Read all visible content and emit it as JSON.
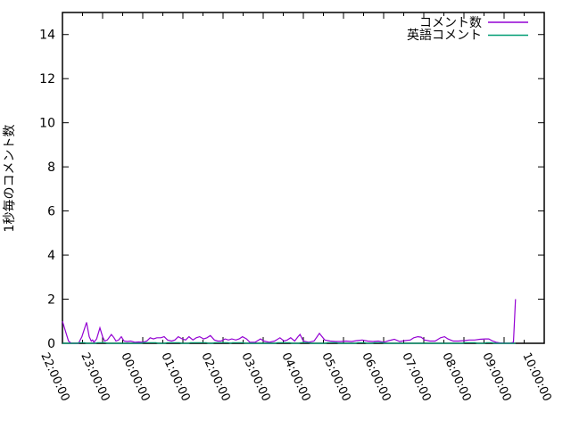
{
  "chart_data": {
    "type": "line",
    "title": "",
    "xlabel": "",
    "ylabel": "1秒毎のコメント数",
    "grid": false,
    "legend_position": "top-right-inside",
    "x_axis": {
      "unit": "time",
      "range_minutes": [
        0,
        720
      ],
      "major_tick_minutes": 60,
      "minor_tick_minutes": 30,
      "tick_labels": [
        "22:00:00",
        "23:00:00",
        "00:00:00",
        "01:00:00",
        "02:00:00",
        "03:00:00",
        "04:00:00",
        "05:00:00",
        "06:00:00",
        "07:00:00",
        "08:00:00",
        "09:00:00",
        "10:00:00"
      ],
      "label_rotation_deg": 65
    },
    "y_axis": {
      "ylim": [
        0,
        15
      ],
      "ticks": [
        0,
        2,
        4,
        6,
        8,
        10,
        12,
        14
      ]
    },
    "series": [
      {
        "name": "コメント数",
        "color": "#9400D3",
        "points": [
          [
            0,
            1.0
          ],
          [
            4,
            0.6
          ],
          [
            9,
            0.1
          ],
          [
            13,
            0
          ],
          [
            24,
            0
          ],
          [
            29,
            0.3
          ],
          [
            36,
            0.95
          ],
          [
            40,
            0.3
          ],
          [
            43,
            0.1
          ],
          [
            45,
            0.15
          ],
          [
            47,
            0.05
          ],
          [
            51,
            0.2
          ],
          [
            56,
            0.7
          ],
          [
            60,
            0.3
          ],
          [
            63,
            0.1
          ],
          [
            67,
            0.15
          ],
          [
            73,
            0.4
          ],
          [
            77,
            0.25
          ],
          [
            80,
            0.1
          ],
          [
            84,
            0.15
          ],
          [
            88,
            0.3
          ],
          [
            92,
            0.1
          ],
          [
            97,
            0.08
          ],
          [
            102,
            0.1
          ],
          [
            108,
            0.05
          ],
          [
            114,
            0.06
          ],
          [
            120,
            0.05
          ],
          [
            126,
            0.1
          ],
          [
            131,
            0.25
          ],
          [
            136,
            0.2
          ],
          [
            141,
            0.25
          ],
          [
            147,
            0.25
          ],
          [
            152,
            0.3
          ],
          [
            157,
            0.15
          ],
          [
            163,
            0.1
          ],
          [
            168,
            0.15
          ],
          [
            173,
            0.3
          ],
          [
            179,
            0.2
          ],
          [
            184,
            0.15
          ],
          [
            189,
            0.3
          ],
          [
            195,
            0.15
          ],
          [
            200,
            0.25
          ],
          [
            205,
            0.3
          ],
          [
            211,
            0.2
          ],
          [
            216,
            0.25
          ],
          [
            221,
            0.35
          ],
          [
            227,
            0.15
          ],
          [
            232,
            0.1
          ],
          [
            237,
            0.1
          ],
          [
            243,
            0.2
          ],
          [
            248,
            0.15
          ],
          [
            253,
            0.2
          ],
          [
            259,
            0.15
          ],
          [
            264,
            0.2
          ],
          [
            269,
            0.3
          ],
          [
            275,
            0.2
          ],
          [
            280,
            0.05
          ],
          [
            288,
            0.05
          ],
          [
            296,
            0.2
          ],
          [
            301,
            0.1
          ],
          [
            309,
            0.05
          ],
          [
            317,
            0.1
          ],
          [
            325,
            0.25
          ],
          [
            331,
            0.1
          ],
          [
            336,
            0.15
          ],
          [
            341,
            0.25
          ],
          [
            347,
            0.1
          ],
          [
            352,
            0.3
          ],
          [
            355,
            0.4
          ],
          [
            360,
            0.1
          ],
          [
            368,
            0.05
          ],
          [
            376,
            0.1
          ],
          [
            384,
            0.45
          ],
          [
            392,
            0.15
          ],
          [
            400,
            0.1
          ],
          [
            408,
            0.08
          ],
          [
            416,
            0.08
          ],
          [
            424,
            0.1
          ],
          [
            432,
            0.08
          ],
          [
            440,
            0.12
          ],
          [
            448,
            0.15
          ],
          [
            456,
            0.1
          ],
          [
            464,
            0.08
          ],
          [
            472,
            0.1
          ],
          [
            480,
            0.05
          ],
          [
            488,
            0.12
          ],
          [
            496,
            0.18
          ],
          [
            504,
            0.08
          ],
          [
            512,
            0.12
          ],
          [
            520,
            0.15
          ],
          [
            525,
            0.25
          ],
          [
            531,
            0.3
          ],
          [
            536,
            0.28
          ],
          [
            541,
            0.15
          ],
          [
            549,
            0.1
          ],
          [
            557,
            0.1
          ],
          [
            565,
            0.25
          ],
          [
            571,
            0.3
          ],
          [
            576,
            0.2
          ],
          [
            584,
            0.1
          ],
          [
            592,
            0.1
          ],
          [
            600,
            0.12
          ],
          [
            608,
            0.15
          ],
          [
            616,
            0.15
          ],
          [
            624,
            0.18
          ],
          [
            632,
            0.2
          ],
          [
            637,
            0.2
          ],
          [
            643,
            0.1
          ],
          [
            648,
            0.05
          ],
          [
            653,
            0.02
          ],
          [
            661,
            0
          ],
          [
            669,
            0
          ],
          [
            674,
            0.05
          ],
          [
            677,
            2.0
          ]
        ]
      },
      {
        "name": "英語コメント",
        "color": "#009E73",
        "points": [
          [
            0,
            0
          ],
          [
            22,
            0
          ],
          [
            25,
            0.03
          ],
          [
            33,
            0.03
          ],
          [
            36,
            0
          ],
          [
            49,
            0
          ],
          [
            52,
            0.03
          ],
          [
            64,
            0.03
          ],
          [
            67,
            0
          ],
          [
            118,
            0
          ],
          [
            121,
            0.03
          ],
          [
            140,
            0.03
          ],
          [
            143,
            0
          ],
          [
            153,
            0
          ],
          [
            156,
            0.03
          ],
          [
            175,
            0.03
          ],
          [
            178,
            0
          ],
          [
            188,
            0
          ],
          [
            191,
            0.03
          ],
          [
            215,
            0.03
          ],
          [
            218,
            0
          ],
          [
            224,
            0
          ],
          [
            227,
            0.03
          ],
          [
            248,
            0.03
          ],
          [
            251,
            0
          ],
          [
            254,
            0.03
          ],
          [
            270,
            0.03
          ],
          [
            273,
            0
          ],
          [
            318,
            0
          ],
          [
            321,
            0.03
          ],
          [
            340,
            0.03
          ],
          [
            343,
            0
          ],
          [
            353,
            0
          ],
          [
            356,
            0.03
          ],
          [
            368,
            0.03
          ],
          [
            371,
            0
          ],
          [
            393,
            0
          ],
          [
            396,
            0.03
          ],
          [
            410,
            0.03
          ],
          [
            413,
            0
          ],
          [
            438,
            0
          ],
          [
            441,
            0.03
          ],
          [
            452,
            0.03
          ],
          [
            455,
            0
          ],
          [
            463,
            0
          ],
          [
            466,
            0.03
          ],
          [
            478,
            0.03
          ],
          [
            481,
            0
          ],
          [
            598,
            0
          ],
          [
            601,
            0.03
          ],
          [
            617,
            0.03
          ],
          [
            620,
            0
          ],
          [
            630,
            0
          ],
          [
            633,
            0.03
          ],
          [
            642,
            0.03
          ],
          [
            645,
            0
          ],
          [
            677,
            0
          ]
        ]
      }
    ]
  },
  "colors": {
    "background": "#ffffff",
    "axis": "#000000",
    "text": "#000000",
    "series_comment": "#9400D3",
    "series_english": "#009E73"
  }
}
